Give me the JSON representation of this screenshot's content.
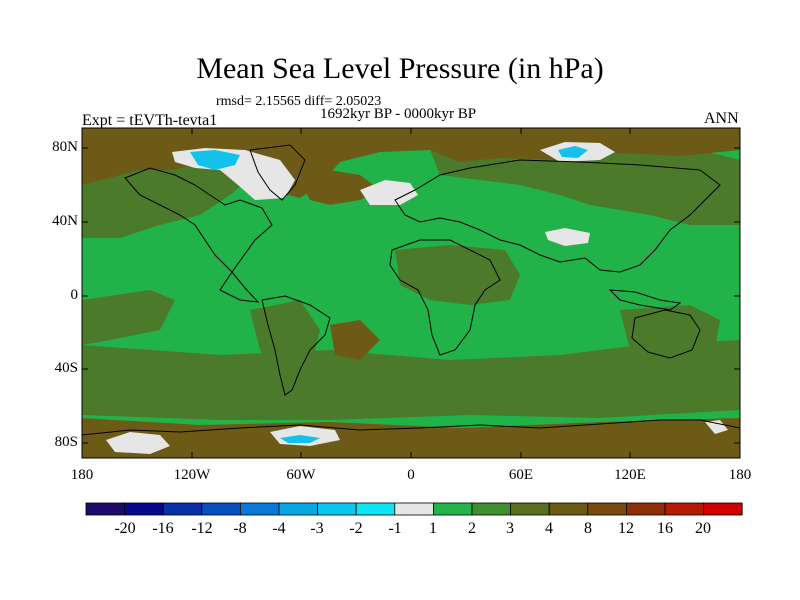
{
  "title": "Mean Sea Level Pressure (in hPa)",
  "stats": "rmsd= 2.15565 diff= 2.05023",
  "period": "1692kyr BP - 0000kyr BP",
  "experiment": "Expt = tEVTh-tevta1",
  "season": "ANN",
  "lat_labels": [
    "80N",
    "40N",
    "0",
    "40S",
    "80S"
  ],
  "lon_labels": [
    "180",
    "120W",
    "60W",
    "0",
    "60E",
    "120E",
    "180"
  ],
  "colorbar": {
    "labels": [
      "-20",
      "-16",
      "-12",
      "-8",
      "-4",
      "-3",
      "-2",
      "-1",
      "1",
      "2",
      "3",
      "4",
      "8",
      "12",
      "16",
      "20"
    ],
    "colors": [
      "#1d0a6b",
      "#08088f",
      "#0a2fa8",
      "#0a4fc0",
      "#0a78d8",
      "#08a6e3",
      "#0ac6ef",
      "#0fe4f4",
      "#e6e6e6",
      "#22b34c",
      "#3f8f2f",
      "#596f20",
      "#6b5a12",
      "#7a4a0c",
      "#8f2f08",
      "#b51a06",
      "#d00000"
    ]
  },
  "palette": {
    "green": "#22b24a",
    "olive": "#4b7a2b",
    "brown": "#6e5a17",
    "white": "#e6e6e6",
    "cyan": "#12c2ea"
  }
}
